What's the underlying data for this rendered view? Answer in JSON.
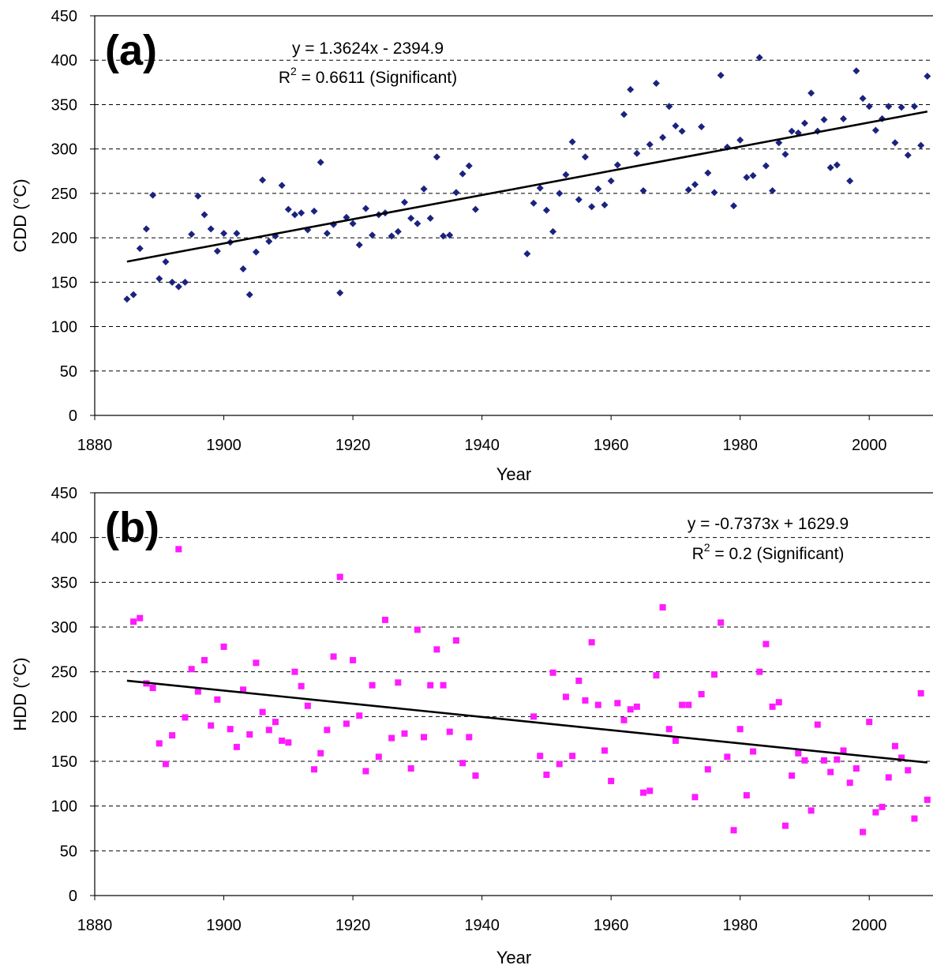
{
  "chart_data": [
    {
      "type": "scatter",
      "panel_label": "(a)",
      "xlabel": "Year",
      "ylabel": "CDD (°C)",
      "xlim": [
        1880,
        2010
      ],
      "ylim": [
        0,
        450
      ],
      "xticks": [
        "1880",
        "1900",
        "1920",
        "1940",
        "1960",
        "1980",
        "2000"
      ],
      "yticks": [
        "0",
        "50",
        "100",
        "150",
        "200",
        "250",
        "300",
        "350",
        "400",
        "450"
      ],
      "grid": "horizontal dashed",
      "marker": "diamond",
      "marker_color": "#1a237e",
      "trendline_color": "#000000",
      "equation": "y = 1.3624x - 2394.9",
      "r2_prefix": "R",
      "r2_sup": "2",
      "r2_suffix": " = 0.6611 (Significant)",
      "trendline": {
        "slope": 1.3624,
        "intercept": -2394.9,
        "x_start": 1885,
        "x_end": 2009
      },
      "points": [
        [
          1885,
          131
        ],
        [
          1886,
          136
        ],
        [
          1887,
          188
        ],
        [
          1888,
          210
        ],
        [
          1889,
          248
        ],
        [
          1890,
          154
        ],
        [
          1891,
          173
        ],
        [
          1892,
          150
        ],
        [
          1893,
          145
        ],
        [
          1894,
          150
        ],
        [
          1895,
          204
        ],
        [
          1896,
          247
        ],
        [
          1897,
          226
        ],
        [
          1898,
          210
        ],
        [
          1899,
          185
        ],
        [
          1900,
          205
        ],
        [
          1901,
          195
        ],
        [
          1902,
          205
        ],
        [
          1903,
          165
        ],
        [
          1904,
          136
        ],
        [
          1905,
          184
        ],
        [
          1906,
          265
        ],
        [
          1907,
          196
        ],
        [
          1908,
          202
        ],
        [
          1909,
          259
        ],
        [
          1910,
          232
        ],
        [
          1911,
          226
        ],
        [
          1912,
          228
        ],
        [
          1913,
          209
        ],
        [
          1914,
          230
        ],
        [
          1915,
          285
        ],
        [
          1916,
          205
        ],
        [
          1917,
          215
        ],
        [
          1918,
          138
        ],
        [
          1919,
          223
        ],
        [
          1920,
          216
        ],
        [
          1921,
          192
        ],
        [
          1922,
          233
        ],
        [
          1923,
          203
        ],
        [
          1924,
          226
        ],
        [
          1925,
          228
        ],
        [
          1926,
          202
        ],
        [
          1927,
          207
        ],
        [
          1928,
          240
        ],
        [
          1929,
          222
        ],
        [
          1930,
          216
        ],
        [
          1931,
          255
        ],
        [
          1932,
          222
        ],
        [
          1933,
          291
        ],
        [
          1934,
          202
        ],
        [
          1935,
          203
        ],
        [
          1936,
          251
        ],
        [
          1937,
          272
        ],
        [
          1938,
          281
        ],
        [
          1939,
          232
        ],
        [
          1947,
          182
        ],
        [
          1948,
          239
        ],
        [
          1949,
          256
        ],
        [
          1950,
          231
        ],
        [
          1951,
          207
        ],
        [
          1952,
          250
        ],
        [
          1953,
          271
        ],
        [
          1954,
          308
        ],
        [
          1955,
          243
        ],
        [
          1956,
          291
        ],
        [
          1957,
          235
        ],
        [
          1958,
          255
        ],
        [
          1959,
          237
        ],
        [
          1960,
          264
        ],
        [
          1961,
          282
        ],
        [
          1962,
          339
        ],
        [
          1963,
          367
        ],
        [
          1964,
          295
        ],
        [
          1965,
          253
        ],
        [
          1966,
          305
        ],
        [
          1967,
          374
        ],
        [
          1968,
          313
        ],
        [
          1969,
          348
        ],
        [
          1970,
          326
        ],
        [
          1971,
          320
        ],
        [
          1972,
          254
        ],
        [
          1973,
          260
        ],
        [
          1974,
          325
        ],
        [
          1975,
          273
        ],
        [
          1976,
          251
        ],
        [
          1977,
          383
        ],
        [
          1978,
          302
        ],
        [
          1979,
          236
        ],
        [
          1980,
          310
        ],
        [
          1981,
          268
        ],
        [
          1982,
          270
        ],
        [
          1983,
          403
        ],
        [
          1984,
          281
        ],
        [
          1985,
          253
        ],
        [
          1986,
          307
        ],
        [
          1987,
          294
        ],
        [
          1988,
          320
        ],
        [
          1989,
          318
        ],
        [
          1990,
          329
        ],
        [
          1991,
          363
        ],
        [
          1992,
          320
        ],
        [
          1993,
          333
        ],
        [
          1994,
          279
        ],
        [
          1995,
          282
        ],
        [
          1996,
          334
        ],
        [
          1997,
          264
        ],
        [
          1998,
          388
        ],
        [
          1999,
          357
        ],
        [
          2000,
          348
        ],
        [
          2001,
          321
        ],
        [
          2002,
          334
        ],
        [
          2003,
          348
        ],
        [
          2004,
          307
        ],
        [
          2005,
          347
        ],
        [
          2006,
          293
        ],
        [
          2007,
          348
        ],
        [
          2008,
          304
        ],
        [
          2009,
          382
        ]
      ]
    },
    {
      "type": "scatter",
      "panel_label": "(b)",
      "xlabel": "Year",
      "ylabel": "HDD (°C)",
      "xlim": [
        1880,
        2010
      ],
      "ylim": [
        0,
        450
      ],
      "xticks": [
        "1880",
        "1900",
        "1920",
        "1940",
        "1960",
        "1980",
        "2000"
      ],
      "yticks": [
        "0",
        "50",
        "100",
        "150",
        "200",
        "250",
        "300",
        "350",
        "400",
        "450"
      ],
      "grid": "horizontal dashed",
      "marker": "square",
      "marker_color": "#ff1aff",
      "trendline_color": "#000000",
      "equation": "y = -0.7373x + 1629.9",
      "r2_prefix": "R",
      "r2_sup": "2",
      "r2_suffix": " = 0.2 (Significant)",
      "trendline": {
        "slope": -0.7373,
        "intercept": 1629.9,
        "x_start": 1885,
        "x_end": 2009
      },
      "points": [
        [
          1886,
          306
        ],
        [
          1887,
          310
        ],
        [
          1888,
          237
        ],
        [
          1889,
          232
        ],
        [
          1890,
          170
        ],
        [
          1891,
          147
        ],
        [
          1892,
          179
        ],
        [
          1893,
          387
        ],
        [
          1894,
          199
        ],
        [
          1895,
          253
        ],
        [
          1896,
          228
        ],
        [
          1897,
          263
        ],
        [
          1898,
          190
        ],
        [
          1899,
          219
        ],
        [
          1900,
          278
        ],
        [
          1901,
          186
        ],
        [
          1902,
          166
        ],
        [
          1903,
          230
        ],
        [
          1904,
          180
        ],
        [
          1905,
          260
        ],
        [
          1906,
          205
        ],
        [
          1907,
          185
        ],
        [
          1908,
          194
        ],
        [
          1909,
          173
        ],
        [
          1910,
          171
        ],
        [
          1911,
          250
        ],
        [
          1912,
          234
        ],
        [
          1913,
          212
        ],
        [
          1914,
          141
        ],
        [
          1915,
          159
        ],
        [
          1916,
          185
        ],
        [
          1917,
          267
        ],
        [
          1918,
          356
        ],
        [
          1919,
          192
        ],
        [
          1920,
          263
        ],
        [
          1921,
          201
        ],
        [
          1922,
          139
        ],
        [
          1923,
          235
        ],
        [
          1924,
          155
        ],
        [
          1925,
          308
        ],
        [
          1926,
          176
        ],
        [
          1927,
          238
        ],
        [
          1928,
          181
        ],
        [
          1929,
          142
        ],
        [
          1930,
          297
        ],
        [
          1931,
          177
        ],
        [
          1932,
          235
        ],
        [
          1933,
          275
        ],
        [
          1934,
          235
        ],
        [
          1935,
          183
        ],
        [
          1936,
          285
        ],
        [
          1937,
          148
        ],
        [
          1938,
          177
        ],
        [
          1939,
          134
        ],
        [
          1948,
          200
        ],
        [
          1949,
          156
        ],
        [
          1950,
          135
        ],
        [
          1951,
          249
        ],
        [
          1952,
          147
        ],
        [
          1953,
          222
        ],
        [
          1954,
          156
        ],
        [
          1955,
          240
        ],
        [
          1956,
          218
        ],
        [
          1957,
          283
        ],
        [
          1958,
          213
        ],
        [
          1959,
          162
        ],
        [
          1960,
          128
        ],
        [
          1961,
          215
        ],
        [
          1962,
          196
        ],
        [
          1963,
          208
        ],
        [
          1964,
          211
        ],
        [
          1965,
          115
        ],
        [
          1966,
          117
        ],
        [
          1967,
          246
        ],
        [
          1968,
          322
        ],
        [
          1969,
          186
        ],
        [
          1970,
          173
        ],
        [
          1971,
          213
        ],
        [
          1972,
          213
        ],
        [
          1973,
          110
        ],
        [
          1974,
          225
        ],
        [
          1975,
          141
        ],
        [
          1976,
          247
        ],
        [
          1977,
          305
        ],
        [
          1978,
          155
        ],
        [
          1979,
          73
        ],
        [
          1980,
          186
        ],
        [
          1981,
          112
        ],
        [
          1982,
          161
        ],
        [
          1983,
          250
        ],
        [
          1984,
          281
        ],
        [
          1985,
          211
        ],
        [
          1986,
          216
        ],
        [
          1987,
          78
        ],
        [
          1988,
          134
        ],
        [
          1989,
          159
        ],
        [
          1990,
          151
        ],
        [
          1991,
          95
        ],
        [
          1992,
          191
        ],
        [
          1993,
          151
        ],
        [
          1994,
          138
        ],
        [
          1995,
          152
        ],
        [
          1996,
          162
        ],
        [
          1997,
          126
        ],
        [
          1998,
          142
        ],
        [
          1999,
          71
        ],
        [
          2000,
          194
        ],
        [
          2001,
          93
        ],
        [
          2002,
          99
        ],
        [
          2003,
          132
        ],
        [
          2004,
          167
        ],
        [
          2005,
          154
        ],
        [
          2006,
          140
        ],
        [
          2007,
          86
        ],
        [
          2008,
          226
        ],
        [
          2009,
          107
        ]
      ]
    }
  ]
}
